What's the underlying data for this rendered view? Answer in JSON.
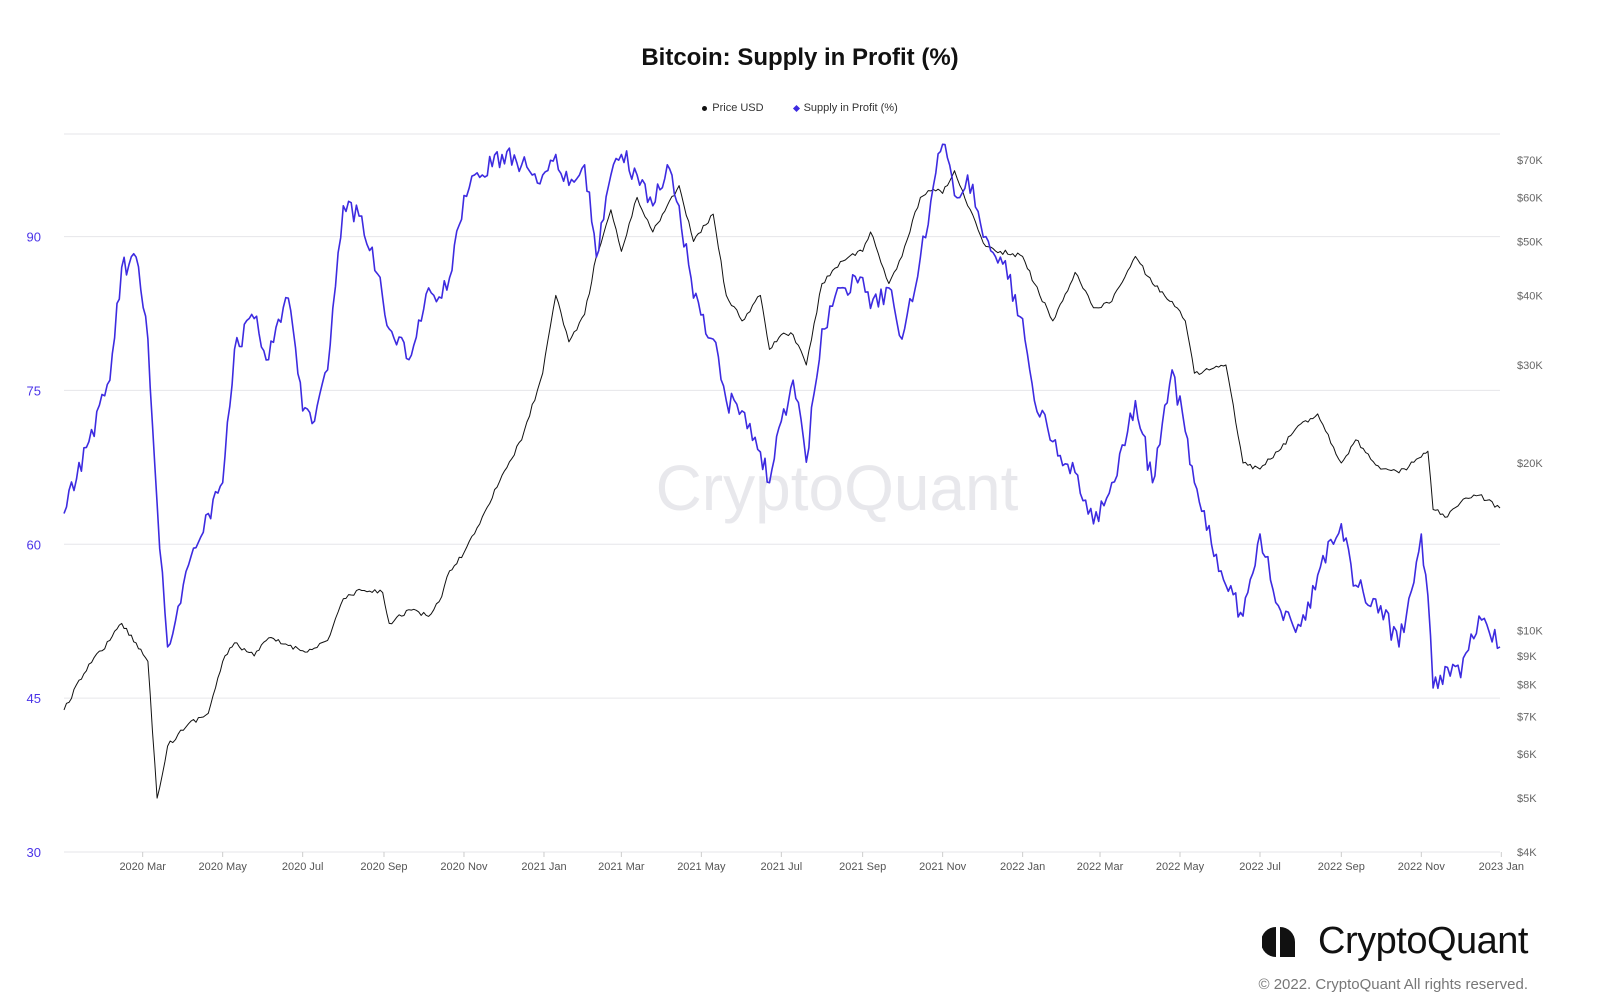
{
  "chart_data": {
    "type": "line",
    "title": "Bitcoin: Supply in Profit (%)",
    "watermark": "CryptoQuant",
    "legend_position": "top-center",
    "grid": true,
    "x_tick_labels": [
      "2020 Mar",
      "2020 May",
      "2020 Jul",
      "2020 Sep",
      "2020 Nov",
      "2021 Jan",
      "2021 Mar",
      "2021 May",
      "2021 Jul",
      "2021 Sep",
      "2021 Nov",
      "2022 Jan",
      "2022 Mar",
      "2022 May",
      "2022 Jul",
      "2022 Sep",
      "2022 Nov",
      "2023 Jan"
    ],
    "x_tick_dates": [
      "2020-03-01",
      "2020-05-01",
      "2020-07-01",
      "2020-09-01",
      "2020-11-01",
      "2021-01-01",
      "2021-03-01",
      "2021-05-01",
      "2021-07-01",
      "2021-09-01",
      "2021-11-01",
      "2022-01-01",
      "2022-03-01",
      "2022-05-01",
      "2022-07-01",
      "2022-09-01",
      "2022-11-01",
      "2023-01-01"
    ],
    "x_range": [
      "2020-01-01",
      "2022-12-31"
    ],
    "y_left": {
      "label": "",
      "range": [
        30,
        100
      ],
      "ticks": [
        30,
        45,
        60,
        75,
        90
      ],
      "color": "#4a33e8"
    },
    "y_right": {
      "label": "",
      "scale": "log",
      "range": [
        4000,
        78000
      ],
      "ticks": [
        4000,
        5000,
        6000,
        7000,
        8000,
        9000,
        10000,
        20000,
        30000,
        40000,
        50000,
        60000,
        70000
      ],
      "tick_labels": [
        "$4K",
        "$5K",
        "$6K",
        "$7K",
        "$8K",
        "$9K",
        "$10K",
        "$20K",
        "$30K",
        "$40K",
        "$50K",
        "$60K",
        "$70K"
      ]
    },
    "series": [
      {
        "name": "Supply in Profit (%)",
        "axis": "left",
        "color": "#3d2be0",
        "x": [
          "2020-01-01",
          "2020-01-20",
          "2020-02-05",
          "2020-02-14",
          "2020-02-25",
          "2020-03-05",
          "2020-03-12",
          "2020-03-20",
          "2020-04-05",
          "2020-04-20",
          "2020-05-01",
          "2020-05-10",
          "2020-05-25",
          "2020-06-05",
          "2020-06-20",
          "2020-07-01",
          "2020-07-10",
          "2020-07-20",
          "2020-08-01",
          "2020-08-15",
          "2020-08-31",
          "2020-09-05",
          "2020-09-20",
          "2020-10-05",
          "2020-10-15",
          "2020-10-21",
          "2020-11-01",
          "2020-11-15",
          "2020-11-30",
          "2020-12-15",
          "2020-12-31",
          "2021-01-10",
          "2021-01-20",
          "2021-02-01",
          "2021-02-10",
          "2021-02-21",
          "2021-03-01",
          "2021-03-13",
          "2021-03-25",
          "2021-04-05",
          "2021-04-14",
          "2021-04-25",
          "2021-05-10",
          "2021-05-20",
          "2021-06-01",
          "2021-06-15",
          "2021-06-22",
          "2021-07-01",
          "2021-07-10",
          "2021-07-20",
          "2021-08-01",
          "2021-08-15",
          "2021-09-01",
          "2021-09-07",
          "2021-09-21",
          "2021-10-01",
          "2021-10-15",
          "2021-10-25",
          "2021-11-01",
          "2021-11-10",
          "2021-11-20",
          "2021-12-04",
          "2021-12-15",
          "2022-01-01",
          "2022-01-10",
          "2022-01-24",
          "2022-02-10",
          "2022-02-24",
          "2022-03-10",
          "2022-03-28",
          "2022-04-10",
          "2022-04-25",
          "2022-05-05",
          "2022-05-12",
          "2022-05-25",
          "2022-06-05",
          "2022-06-18",
          "2022-07-01",
          "2022-07-15",
          "2022-08-01",
          "2022-08-14",
          "2022-09-01",
          "2022-09-12",
          "2022-10-01",
          "2022-10-15",
          "2022-11-01",
          "2022-11-06",
          "2022-11-10",
          "2022-11-21",
          "2022-12-01",
          "2022-12-15",
          "2022-12-31"
        ],
        "y": [
          63,
          70,
          76,
          87,
          88,
          80,
          64,
          50,
          58,
          63,
          66,
          79,
          82,
          78,
          84,
          73,
          72,
          77,
          93,
          92,
          84,
          81,
          78,
          85,
          84,
          86,
          94,
          96,
          98,
          97,
          96,
          98,
          95,
          97,
          88,
          96,
          98,
          96,
          93,
          97,
          93,
          84,
          80,
          74,
          73,
          69,
          66,
          72,
          76,
          68,
          81,
          85,
          86,
          83,
          85,
          80,
          88,
          95,
          99,
          94,
          96,
          90,
          88,
          82,
          74,
          70,
          67,
          62,
          66,
          74,
          66,
          77,
          71,
          66,
          60,
          56,
          53,
          61,
          54,
          52,
          57,
          62,
          56,
          54,
          50,
          61,
          55,
          46,
          48,
          47,
          53,
          50
        ]
      },
      {
        "name": "Price USD",
        "axis": "right",
        "color": "#111111",
        "x": [
          "2020-01-01",
          "2020-01-20",
          "2020-02-05",
          "2020-02-14",
          "2020-02-25",
          "2020-03-05",
          "2020-03-12",
          "2020-03-20",
          "2020-04-05",
          "2020-04-20",
          "2020-05-01",
          "2020-05-10",
          "2020-05-25",
          "2020-06-05",
          "2020-06-20",
          "2020-07-01",
          "2020-07-10",
          "2020-07-20",
          "2020-08-01",
          "2020-08-15",
          "2020-08-31",
          "2020-09-05",
          "2020-09-20",
          "2020-10-05",
          "2020-10-15",
          "2020-10-21",
          "2020-11-01",
          "2020-11-15",
          "2020-11-30",
          "2020-12-15",
          "2020-12-31",
          "2021-01-10",
          "2021-01-20",
          "2021-02-01",
          "2021-02-10",
          "2021-02-21",
          "2021-03-01",
          "2021-03-13",
          "2021-03-25",
          "2021-04-05",
          "2021-04-14",
          "2021-04-25",
          "2021-05-10",
          "2021-05-20",
          "2021-06-01",
          "2021-06-15",
          "2021-06-22",
          "2021-07-01",
          "2021-07-10",
          "2021-07-20",
          "2021-08-01",
          "2021-08-15",
          "2021-09-01",
          "2021-09-07",
          "2021-09-21",
          "2021-10-01",
          "2021-10-15",
          "2021-10-25",
          "2021-11-01",
          "2021-11-10",
          "2021-11-20",
          "2021-12-04",
          "2021-12-15",
          "2022-01-01",
          "2022-01-10",
          "2022-01-24",
          "2022-02-10",
          "2022-02-24",
          "2022-03-10",
          "2022-03-28",
          "2022-04-10",
          "2022-04-25",
          "2022-05-05",
          "2022-05-12",
          "2022-05-25",
          "2022-06-05",
          "2022-06-18",
          "2022-07-01",
          "2022-07-15",
          "2022-08-01",
          "2022-08-14",
          "2022-09-01",
          "2022-09-12",
          "2022-10-01",
          "2022-10-15",
          "2022-11-01",
          "2022-11-06",
          "2022-11-10",
          "2022-11-21",
          "2022-12-01",
          "2022-12-15",
          "2022-12-31"
        ],
        "y": [
          7200,
          8700,
          9600,
          10300,
          9500,
          8800,
          5000,
          6200,
          6800,
          7100,
          8800,
          9500,
          9000,
          9700,
          9400,
          9200,
          9300,
          9600,
          11400,
          11800,
          11700,
          10300,
          10900,
          10600,
          11500,
          12800,
          13800,
          16000,
          19000,
          22000,
          29000,
          40000,
          33000,
          37000,
          47000,
          57000,
          48000,
          60000,
          52000,
          58000,
          63000,
          50000,
          56000,
          40000,
          36000,
          40000,
          32000,
          34000,
          34000,
          30000,
          42000,
          46000,
          48000,
          52000,
          42000,
          47000,
          60000,
          62000,
          61000,
          67000,
          58000,
          49000,
          48000,
          47000,
          42000,
          36000,
          44000,
          38000,
          39000,
          47000,
          42000,
          39000,
          36000,
          29000,
          29500,
          30000,
          20000,
          19500,
          21000,
          23500,
          24500,
          20000,
          22000,
          19500,
          19200,
          20500,
          21000,
          16500,
          16000,
          17000,
          17500,
          16600
        ]
      }
    ]
  },
  "legend": [
    {
      "label": "Price USD",
      "color": "#111111",
      "marker": "circle"
    },
    {
      "label": "Supply in Profit (%)",
      "color": "#3d2be0",
      "marker": "diamond"
    }
  ],
  "branding": {
    "logo_text": "CryptoQuant",
    "copyright": "© 2022. CryptoQuant All rights reserved."
  }
}
